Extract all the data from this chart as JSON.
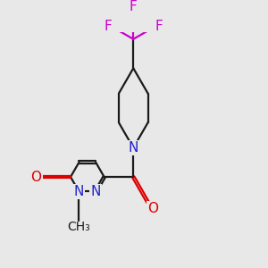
{
  "bg_color": "#e8e8e8",
  "bond_color": "#1a1a1a",
  "N_color": "#2222cc",
  "O_color": "#dd0000",
  "F_color": "#cc00cc",
  "line_width": 1.6,
  "figsize": [
    3.0,
    3.0
  ],
  "dpi": 100,
  "xlim": [
    0,
    10
  ],
  "ylim": [
    0,
    10
  ],
  "fs_main": 11,
  "fs_methyl": 10
}
